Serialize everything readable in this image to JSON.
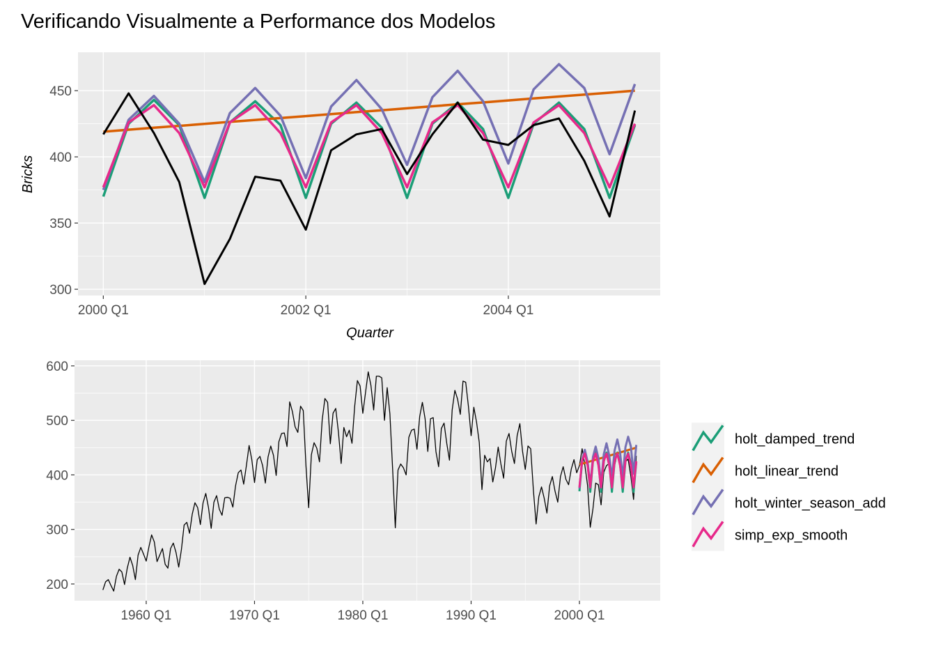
{
  "chart_data": [
    {
      "type": "line",
      "title": "Verificando Visualmente a Performance dos Modelos",
      "x_label": "Quarter",
      "y_label": "Bricks",
      "x": [
        "2000 Q1",
        "2000 Q2",
        "2000 Q3",
        "2000 Q4",
        "2001 Q1",
        "2001 Q2",
        "2001 Q3",
        "2001 Q4",
        "2002 Q1",
        "2002 Q2",
        "2002 Q3",
        "2002 Q4",
        "2003 Q1",
        "2003 Q2",
        "2003 Q3",
        "2003 Q4",
        "2004 Q1",
        "2004 Q2",
        "2004 Q3",
        "2004 Q4",
        "2005 Q1",
        "2005 Q2"
      ],
      "xlim": [
        1999.75,
        2005.5
      ],
      "xticks": [
        "2000 Q1",
        "2002 Q1",
        "2004 Q1"
      ],
      "ylim": [
        295.3,
        479
      ],
      "yticks": [
        300,
        350,
        400,
        450
      ],
      "grid": true,
      "series": [
        {
          "color": "#1B9E77",
          "values": [
            370,
            425,
            443,
            424,
            369,
            426,
            442,
            424,
            369,
            425,
            441,
            422,
            369,
            425,
            441,
            421,
            369,
            425,
            441,
            421,
            369,
            424
          ]
        },
        {
          "color": "#D95F02",
          "values": [
            419,
            420.5,
            422,
            423.4,
            424.9,
            426.4,
            427.9,
            429.3,
            430.8,
            432.3,
            433.8,
            435.2,
            436.7,
            438.2,
            439.7,
            441.1,
            442.6,
            444.1,
            445.6,
            447,
            448.5,
            450
          ]
        },
        {
          "color": "#7570B3",
          "values": [
            375,
            428,
            446,
            425,
            381,
            433,
            452,
            431,
            384,
            438,
            458,
            436,
            394,
            445,
            465,
            442,
            395,
            451,
            470,
            452,
            402,
            455
          ]
        },
        {
          "color": "#E7298A",
          "values": [
            377,
            426,
            439,
            418,
            377,
            426,
            439,
            418,
            377,
            426,
            439,
            418,
            377,
            426,
            439,
            418,
            377,
            426,
            439,
            418,
            377,
            425
          ]
        },
        {
          "color": "#000000",
          "values": [
            417,
            448,
            418,
            381,
            304,
            338,
            385,
            382,
            345,
            405,
            417,
            421,
            387,
            417,
            441,
            413,
            409,
            424,
            429,
            397,
            355,
            435
          ]
        }
      ]
    },
    {
      "type": "line",
      "legend": "right",
      "xlim": [
        1953.38,
        2007.46
      ],
      "xticks": [
        "1960 Q1",
        "1970 Q1",
        "1980 Q1",
        "1990 Q1",
        "2000 Q1"
      ],
      "ylim": [
        169.3,
        610.2
      ],
      "yticks": [
        200,
        300,
        400,
        500,
        600
      ],
      "grid": true,
      "series": [
        {
          "color": "#000000",
          "x": [
            "1956 Q1",
            "1956 Q2",
            "1956 Q3",
            "1956 Q4",
            "1957 Q1",
            "1957 Q2",
            "1957 Q3",
            "1957 Q4",
            "1958 Q1",
            "1958 Q2",
            "1958 Q3",
            "1958 Q4",
            "1959 Q1",
            "1959 Q2",
            "1959 Q3",
            "1959 Q4",
            "1960 Q1",
            "1960 Q2",
            "1960 Q3",
            "1960 Q4",
            "1961 Q1",
            "1961 Q2",
            "1961 Q3",
            "1961 Q4",
            "1962 Q1",
            "1962 Q2",
            "1962 Q3",
            "1962 Q4",
            "1963 Q1",
            "1963 Q2",
            "1963 Q3",
            "1963 Q4",
            "1964 Q1",
            "1964 Q2",
            "1964 Q3",
            "1964 Q4",
            "1965 Q1",
            "1965 Q2",
            "1965 Q3",
            "1965 Q4",
            "1966 Q1",
            "1966 Q2",
            "1966 Q3",
            "1966 Q4",
            "1967 Q1",
            "1967 Q2",
            "1967 Q3",
            "1967 Q4",
            "1968 Q1",
            "1968 Q2",
            "1968 Q3",
            "1968 Q4",
            "1969 Q1",
            "1969 Q2",
            "1969 Q3",
            "1969 Q4",
            "1970 Q1",
            "1970 Q2",
            "1970 Q3",
            "1970 Q4",
            "1971 Q1",
            "1971 Q2",
            "1971 Q3",
            "1971 Q4",
            "1972 Q1",
            "1972 Q2",
            "1972 Q3",
            "1972 Q4",
            "1973 Q1",
            "1973 Q2",
            "1973 Q3",
            "1973 Q4",
            "1974 Q1",
            "1974 Q2",
            "1974 Q3",
            "1974 Q4",
            "1975 Q1",
            "1975 Q2",
            "1975 Q3",
            "1975 Q4",
            "1976 Q1",
            "1976 Q2",
            "1976 Q3",
            "1976 Q4",
            "1977 Q1",
            "1977 Q2",
            "1977 Q3",
            "1977 Q4",
            "1978 Q1",
            "1978 Q2",
            "1978 Q3",
            "1978 Q4",
            "1979 Q1",
            "1979 Q2",
            "1979 Q3",
            "1979 Q4",
            "1980 Q1",
            "1980 Q2",
            "1980 Q3",
            "1980 Q4",
            "1981 Q1",
            "1981 Q2",
            "1981 Q3",
            "1981 Q4",
            "1982 Q1",
            "1982 Q2",
            "1982 Q3",
            "1982 Q4",
            "1983 Q1",
            "1983 Q2",
            "1983 Q3",
            "1983 Q4",
            "1984 Q1",
            "1984 Q2",
            "1984 Q3",
            "1984 Q4",
            "1985 Q1",
            "1985 Q2",
            "1985 Q3",
            "1985 Q4",
            "1986 Q1",
            "1986 Q2",
            "1986 Q3",
            "1986 Q4",
            "1987 Q1",
            "1987 Q2",
            "1987 Q3",
            "1987 Q4",
            "1988 Q1",
            "1988 Q2",
            "1988 Q3",
            "1988 Q4",
            "1989 Q1",
            "1989 Q2",
            "1989 Q3",
            "1989 Q4",
            "1990 Q1",
            "1990 Q2",
            "1990 Q3",
            "1990 Q4",
            "1991 Q1",
            "1991 Q2",
            "1991 Q3",
            "1991 Q4",
            "1992 Q1",
            "1992 Q2",
            "1992 Q3",
            "1992 Q4",
            "1993 Q1",
            "1993 Q2",
            "1993 Q3",
            "1993 Q4",
            "1994 Q1",
            "1994 Q2",
            "1994 Q3",
            "1994 Q4",
            "1995 Q1",
            "1995 Q2",
            "1995 Q3",
            "1995 Q4",
            "1996 Q1",
            "1996 Q2",
            "1996 Q3",
            "1996 Q4",
            "1997 Q1",
            "1997 Q2",
            "1997 Q3",
            "1997 Q4",
            "1998 Q1",
            "1998 Q2",
            "1998 Q3",
            "1998 Q4",
            "1999 Q1",
            "1999 Q2",
            "1999 Q3",
            "1999 Q4",
            "2000 Q1",
            "2000 Q2",
            "2000 Q3",
            "2000 Q4",
            "2001 Q1",
            "2001 Q2",
            "2001 Q3",
            "2001 Q4",
            "2002 Q1",
            "2002 Q2",
            "2002 Q3",
            "2002 Q4",
            "2003 Q1",
            "2003 Q2",
            "2003 Q3",
            "2003 Q4",
            "2004 Q1",
            "2004 Q2",
            "2004 Q3",
            "2004 Q4",
            "2005 Q1",
            "2005 Q2"
          ],
          "values": [
            189,
            204,
            208,
            197,
            187,
            214,
            227,
            222,
            199,
            229,
            249,
            234,
            208,
            253,
            267,
            255,
            242,
            268,
            290,
            277,
            241,
            253,
            265,
            236,
            229,
            265,
            275,
            258,
            231,
            263,
            308,
            313,
            293,
            328,
            349,
            340,
            309,
            349,
            366,
            340,
            302,
            350,
            362,
            337,
            326,
            358,
            359,
            357,
            341,
            380,
            404,
            409,
            383,
            417,
            454,
            428,
            386,
            428,
            434,
            417,
            385,
            433,
            453,
            436,
            399,
            461,
            476,
            477,
            452,
            534,
            516,
            488,
            478,
            526,
            518,
            417,
            340,
            437,
            459,
            449,
            424,
            501,
            540,
            533,
            457,
            513,
            522,
            478,
            421,
            487,
            470,
            482,
            458,
            526,
            573,
            563,
            513,
            551,
            589,
            564,
            519,
            581,
            581,
            578,
            500,
            560,
            512,
            412,
            303,
            409,
            420,
            413,
            400,
            469,
            482,
            484,
            447,
            507,
            533,
            503,
            443,
            503,
            505,
            443,
            415,
            485,
            495,
            458,
            427,
            519,
            555,
            539,
            511,
            572,
            570,
            526,
            472,
            524,
            497,
            460,
            373,
            436,
            424,
            430,
            387,
            413,
            451,
            420,
            394,
            462,
            476,
            443,
            421,
            472,
            494,
            443,
            410,
            453,
            448,
            372,
            310,
            360,
            378,
            357,
            330,
            380,
            397,
            370,
            350,
            397,
            415,
            392,
            382,
            411,
            428,
            404,
            417,
            448,
            418,
            381,
            304,
            338,
            385,
            382,
            345,
            405,
            417,
            421,
            387,
            417,
            441,
            413,
            409,
            424,
            429,
            397,
            355,
            435
          ]
        },
        {
          "name": "holt_damped_trend",
          "color": "#1B9E77",
          "x": [
            "2000 Q1",
            "2000 Q2",
            "2000 Q3",
            "2000 Q4",
            "2001 Q1",
            "2001 Q2",
            "2001 Q3",
            "2001 Q4",
            "2002 Q1",
            "2002 Q2",
            "2002 Q3",
            "2002 Q4",
            "2003 Q1",
            "2003 Q2",
            "2003 Q3",
            "2003 Q4",
            "2004 Q1",
            "2004 Q2",
            "2004 Q3",
            "2004 Q4",
            "2005 Q1",
            "2005 Q2"
          ],
          "values": [
            370,
            425,
            443,
            424,
            369,
            426,
            442,
            424,
            369,
            425,
            441,
            422,
            369,
            425,
            441,
            421,
            369,
            425,
            441,
            421,
            369,
            424
          ]
        },
        {
          "name": "holt_linear_trend",
          "color": "#D95F02",
          "x": [
            "2000 Q1",
            "2000 Q2",
            "2000 Q3",
            "2000 Q4",
            "2001 Q1",
            "2001 Q2",
            "2001 Q3",
            "2001 Q4",
            "2002 Q1",
            "2002 Q2",
            "2002 Q3",
            "2002 Q4",
            "2003 Q1",
            "2003 Q2",
            "2003 Q3",
            "2003 Q4",
            "2004 Q1",
            "2004 Q2",
            "2004 Q3",
            "2004 Q4",
            "2005 Q1",
            "2005 Q2"
          ],
          "values": [
            419,
            420.5,
            422,
            423.4,
            424.9,
            426.4,
            427.9,
            429.3,
            430.8,
            432.3,
            433.8,
            435.2,
            436.7,
            438.2,
            439.7,
            441.1,
            442.6,
            444.1,
            445.6,
            447,
            448.5,
            450
          ]
        },
        {
          "name": "holt_winter_season_add",
          "color": "#7570B3",
          "x": [
            "2000 Q1",
            "2000 Q2",
            "2000 Q3",
            "2000 Q4",
            "2001 Q1",
            "2001 Q2",
            "2001 Q3",
            "2001 Q4",
            "2002 Q1",
            "2002 Q2",
            "2002 Q3",
            "2002 Q4",
            "2003 Q1",
            "2003 Q2",
            "2003 Q3",
            "2003 Q4",
            "2004 Q1",
            "2004 Q2",
            "2004 Q3",
            "2004 Q4",
            "2005 Q1",
            "2005 Q2"
          ],
          "values": [
            375,
            428,
            446,
            425,
            381,
            433,
            452,
            431,
            384,
            438,
            458,
            436,
            394,
            445,
            465,
            442,
            395,
            451,
            470,
            452,
            402,
            455
          ]
        },
        {
          "name": "simp_exp_smooth",
          "color": "#E7298A",
          "x": [
            "2000 Q1",
            "2000 Q2",
            "2000 Q3",
            "2000 Q4",
            "2001 Q1",
            "2001 Q2",
            "2001 Q3",
            "2001 Q4",
            "2002 Q1",
            "2002 Q2",
            "2002 Q3",
            "2002 Q4",
            "2003 Q1",
            "2003 Q2",
            "2003 Q3",
            "2003 Q4",
            "2004 Q1",
            "2004 Q2",
            "2004 Q3",
            "2004 Q4",
            "2005 Q1",
            "2005 Q2"
          ],
          "values": [
            377,
            426,
            439,
            418,
            377,
            426,
            439,
            418,
            377,
            426,
            439,
            418,
            377,
            426,
            439,
            418,
            377,
            426,
            439,
            418,
            377,
            425
          ]
        }
      ]
    }
  ]
}
